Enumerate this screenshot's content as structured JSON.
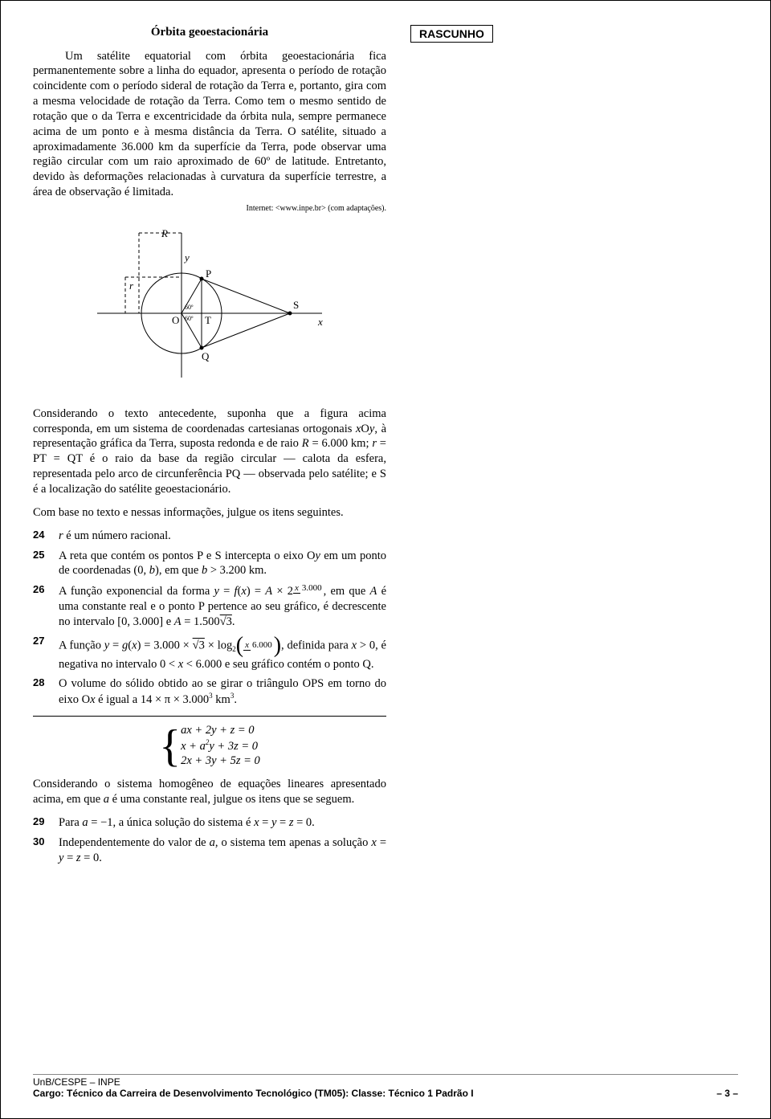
{
  "rascunho_label": "RASCUNHO",
  "title": "Órbita geoestacionária",
  "para1_a": "Um satélite equatorial com órbita geoestacionária fica permanentemente sobre a linha do equador, apresenta o período de rotação coincidente com o período sideral de rotação da Terra e, portanto, gira com a mesma velocidade de rotação da Terra. Como tem o mesmo sentido de rotação que o da Terra e excentricidade da órbita nula, sempre permanece acima de um ponto e à mesma distância da Terra. O satélite, situado a aproximadamente 36.000 km da superfície da Terra, pode observar uma região circular com um raio aproximado de 60º de latitude. Entretanto, devido às deformações relacionadas à curvatura da superfície terrestre, a área de observação é limitada.",
  "source": "Internet: <www.inpe.br> (com adaptações).",
  "diagram": {
    "labels": {
      "R": "R",
      "r": "r",
      "y": "y",
      "x": "x",
      "P": "P",
      "Q": "Q",
      "S": "S",
      "O": "O",
      "T": "T",
      "ang": "60º"
    },
    "stroke": "#000000"
  },
  "para2_a": "Considerando o texto antecedente, suponha que a figura acima corresponda, em um sistema de coordenadas cartesianas ortogonais ",
  "para2_b": ", à representação gráfica da Terra, suposta redonda e de raio ",
  "para2_c": " = 6.000 km; ",
  "para2_d": " = PT = QT é o raio da base da região circular — calota da esfera, representada pelo arco de circunferência PQ — observada pelo satélite; e S é a localização do satélite geoestacionário.",
  "para3": "Com base no texto e nessas informações, julgue os itens seguintes.",
  "items": [
    {
      "n": "24",
      "html": "<span class='ital'>r</span> é um número racional."
    },
    {
      "n": "25",
      "html": "A reta que contém os pontos P e S intercepta o eixo O<span class='ital'>y</span> em um ponto de coordenadas (0, <span class='ital'>b</span>), em que <span class='ital'>b</span> > 3.200 km."
    },
    {
      "n": "26",
      "html": "A função exponencial da forma <span class='ital'>y</span> = <span class='ital'>f</span>(<span class='ital'>x</span>) = <span class='ital'>A</span> × 2<span class='sup'><span class='frac'><span class='fn'><span class='ital'>x</span></span><span class='fd'>3.000</span></span></span>, em que <span class='ital'>A</span> é uma constante real e o ponto P pertence ao seu gráfico, é decrescente no intervalo [0, 3.000] e <span class='ital'>A</span> = 1.500<span class='sqrt-bar'>√3</span>."
    },
    {
      "n": "27",
      "html": "A função <span class='ital'>y</span> = <span class='ital'>g</span>(<span class='ital'>x</span>) = 3.000 × <span class='sqrt-bar'>√3</span> × log<span class='sub'>2</span><span class='bigp'><span class='bigp-l'>(</span><span class='frac'><span class='fn'><span class='ital'>x</span></span><span class='fd'>6.000</span></span><span class='bigp-r'>)</span></span>, definida para <span class='ital'>x</span> > 0, é negativa no intervalo 0 < <span class='ital'>x</span> < 6.000 e seu gráfico contém o ponto Q."
    },
    {
      "n": "28",
      "html": "O volume do sólido obtido ao se girar o triângulo OPS em torno do eixo O<span class='ital'>x</span> é igual a 14 × π × 3.000<span class='sup'>3</span> km<span class='sup'>3</span>."
    }
  ],
  "system": {
    "eq1": "ax + 2y + z = 0",
    "eq2_a": "x + a",
    "eq2_sup": "2",
    "eq2_b": "y + 3z = 0",
    "eq3": "2x + 3y + 5z = 0"
  },
  "para4_a": "Considerando o sistema homogêneo de equações lineares apresentado acima, em que ",
  "para4_b": " é uma constante real, julgue os itens que se seguem.",
  "items2": [
    {
      "n": "29",
      "html": "Para <span class='ital'>a</span> = −1, a única solução do sistema é <span class='ital'>x</span> = <span class='ital'>y</span> = <span class='ital'>z</span> = 0."
    },
    {
      "n": "30",
      "html": "Independentemente do valor de <span class='ital'>a</span>, o sistema tem apenas a solução <span class='ital'>x</span> = <span class='ital'>y</span> = <span class='ital'>z</span> = 0."
    }
  ],
  "footer": {
    "org": "UnB/CESPE – INPE",
    "cargo": "Cargo: Técnico da Carreira de Desenvolvimento Tecnológico (TM05): Classe: Técnico 1 Padrão I",
    "pagenum": "– 3 –"
  }
}
